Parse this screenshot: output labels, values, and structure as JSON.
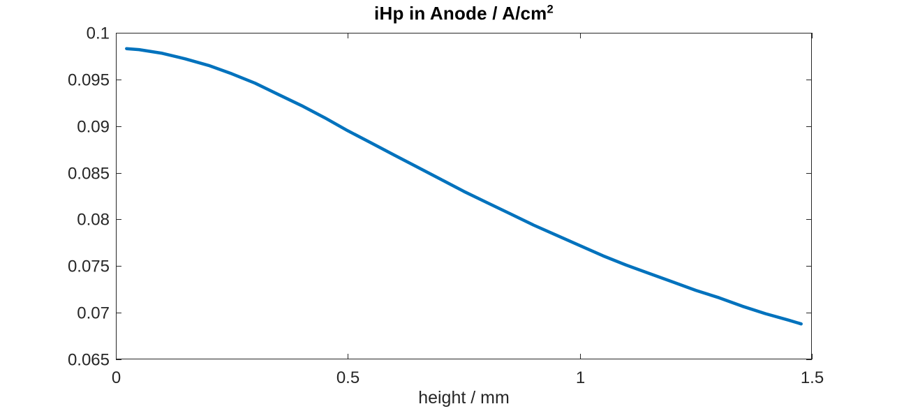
{
  "title": {
    "text": "iHp in Anode / A/cm",
    "superscript": "2"
  },
  "chart_data": {
    "type": "line",
    "title": "iHp in Anode / A/cm^2",
    "xlabel": "height / mm",
    "ylabel": "",
    "xlim": [
      0,
      1.5
    ],
    "ylim": [
      0.065,
      0.1
    ],
    "xticks": {
      "values": [
        0,
        0.5,
        1,
        1.5
      ],
      "labels": [
        "0",
        "0.5",
        "1",
        "1.5"
      ]
    },
    "yticks": {
      "values": [
        0.065,
        0.07,
        0.075,
        0.08,
        0.085,
        0.09,
        0.095,
        0.1
      ],
      "labels": [
        "0.065",
        "0.07",
        "0.075",
        "0.08",
        "0.085",
        "0.09",
        "0.095",
        "0.1"
      ]
    },
    "grid": false,
    "legend": "none",
    "box": true,
    "tick_direction": "in",
    "line_width": 4.5,
    "colors": {
      "line": "#0072BD",
      "axis": "#262626",
      "tick_label": "#262626",
      "title": "#000000",
      "background": "#ffffff"
    },
    "series": [
      {
        "name": "iHp",
        "x": [
          0.023,
          0.05,
          0.1,
          0.15,
          0.2,
          0.25,
          0.3,
          0.35,
          0.4,
          0.45,
          0.5,
          0.55,
          0.6,
          0.65,
          0.7,
          0.75,
          0.8,
          0.85,
          0.9,
          0.95,
          1.0,
          1.05,
          1.1,
          1.15,
          1.2,
          1.25,
          1.3,
          1.35,
          1.4,
          1.45,
          1.477
        ],
        "y": [
          0.0983,
          0.0982,
          0.0978,
          0.0972,
          0.0965,
          0.0956,
          0.0946,
          0.0934,
          0.0922,
          0.0909,
          0.0895,
          0.0882,
          0.0869,
          0.0856,
          0.0843,
          0.083,
          0.0818,
          0.0806,
          0.0794,
          0.0783,
          0.0772,
          0.0761,
          0.0751,
          0.0742,
          0.0733,
          0.0724,
          0.0716,
          0.0707,
          0.0699,
          0.0692,
          0.0688
        ]
      }
    ]
  }
}
